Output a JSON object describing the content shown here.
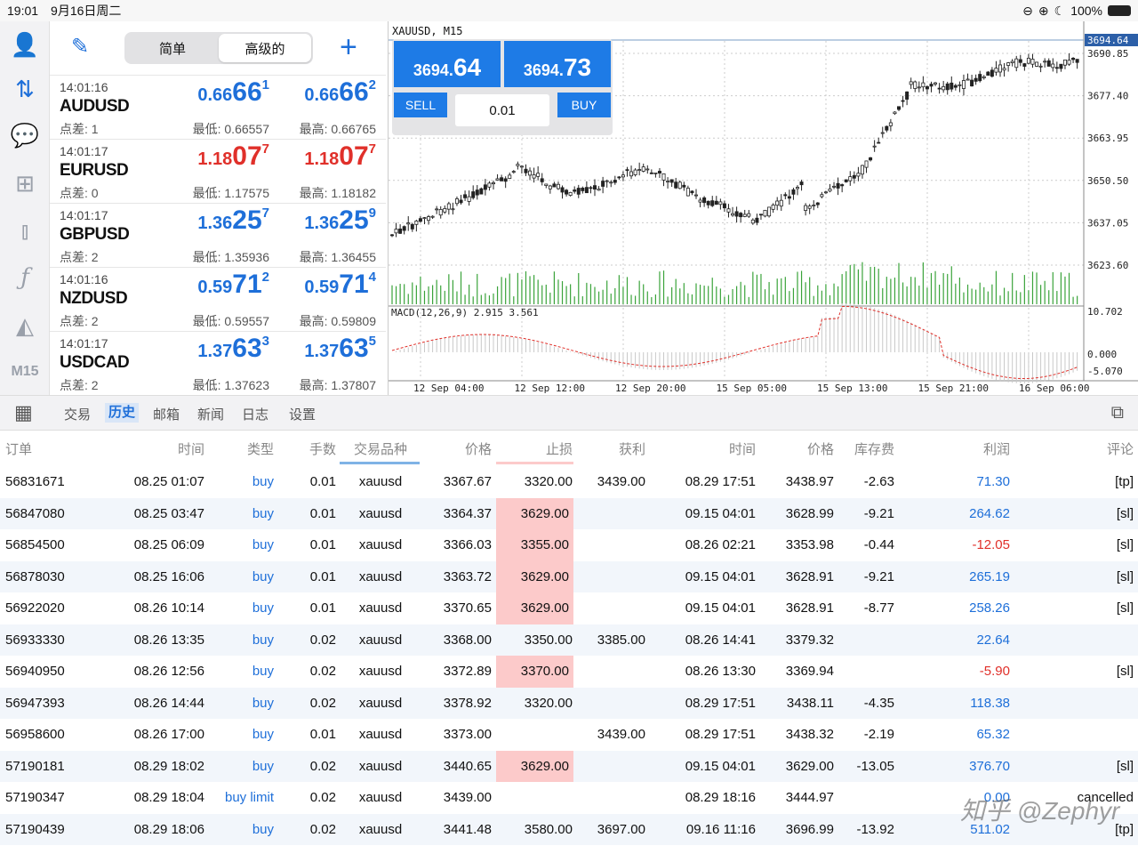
{
  "status": {
    "time": "19:01",
    "date": "9月16日周二",
    "battery": "100%"
  },
  "sidebar": {
    "timeframe": "M15"
  },
  "quotes_header": {
    "seg_simple": "简单",
    "seg_advanced": "高级的"
  },
  "quotes": [
    {
      "time": "14:01:16",
      "symbol": "AUDUSD",
      "spread": "点差: 1",
      "bid_a": "0.66",
      "bid_b": "66",
      "bid_c": "1",
      "ask_a": "0.66",
      "ask_b": "66",
      "ask_c": "2",
      "low": "最低: 0.66557",
      "high": "最高: 0.66765",
      "color": "#1e6fd9"
    },
    {
      "time": "14:01:17",
      "symbol": "EURUSD",
      "spread": "点差: 0",
      "bid_a": "1.18",
      "bid_b": "07",
      "bid_c": "7",
      "ask_a": "1.18",
      "ask_b": "07",
      "ask_c": "7",
      "low": "最低: 1.17575",
      "high": "最高: 1.18182",
      "color": "#e0302a"
    },
    {
      "time": "14:01:17",
      "symbol": "GBPUSD",
      "spread": "点差: 2",
      "bid_a": "1.36",
      "bid_b": "25",
      "bid_c": "7",
      "ask_a": "1.36",
      "ask_b": "25",
      "ask_c": "9",
      "low": "最低: 1.35936",
      "high": "最高: 1.36455",
      "color": "#1e6fd9"
    },
    {
      "time": "14:01:16",
      "symbol": "NZDUSD",
      "spread": "点差: 2",
      "bid_a": "0.59",
      "bid_b": "71",
      "bid_c": "2",
      "ask_a": "0.59",
      "ask_b": "71",
      "ask_c": "4",
      "low": "最低: 0.59557",
      "high": "最高: 0.59809",
      "color": "#1e6fd9"
    },
    {
      "time": "14:01:17",
      "symbol": "USDCAD",
      "spread": "点差: 2",
      "bid_a": "1.37",
      "bid_b": "63",
      "bid_c": "3",
      "ask_a": "1.37",
      "ask_b": "63",
      "ask_c": "5",
      "low": "最低: 1.37623",
      "high": "最高: 1.37807",
      "color": "#1e6fd9"
    }
  ],
  "chart": {
    "title": "XAUUSD, M15",
    "sell_a": "3694.",
    "sell_b": "64",
    "buy_a": "3694.",
    "buy_b": "73",
    "sell_label": "SELL",
    "buy_label": "BUY",
    "lot": "0.01",
    "price_tag": "3694.64",
    "y_ticks": [
      "3690.85",
      "3677.40",
      "3663.95",
      "3650.50",
      "3637.05",
      "3623.60"
    ],
    "macd_label": "MACD(12,26,9) 2.915 3.561",
    "macd_ticks": [
      "10.702",
      "0.000",
      "-5.070"
    ],
    "x_ticks": [
      "12 Sep 04:00",
      "12 Sep 12:00",
      "12 Sep 20:00",
      "15 Sep 05:00",
      "15 Sep 13:00",
      "15 Sep 21:00",
      "16 Sep 06:00"
    ]
  },
  "tabs": [
    "交易",
    "历史",
    "邮箱",
    "新闻",
    "日志",
    "设置"
  ],
  "columns": [
    "订单",
    "时间",
    "类型",
    "手数",
    "交易品种",
    "价格",
    "止损",
    "获利",
    "时间",
    "价格",
    "库存费",
    "利润",
    "评论"
  ],
  "rows": [
    [
      "56831671",
      "08.25 01:07",
      "buy",
      "0.01",
      "xauusd",
      "3367.67",
      "3320.00",
      "3439.00",
      "08.29 17:51",
      "3438.97",
      "-2.63",
      "71.30",
      "[tp]"
    ],
    [
      "56847080",
      "08.25 03:47",
      "buy",
      "0.01",
      "xauusd",
      "3364.37",
      "3629.00",
      "",
      "09.15 04:01",
      "3628.99",
      "-9.21",
      "264.62",
      "[sl]"
    ],
    [
      "56854500",
      "08.25 06:09",
      "buy",
      "0.01",
      "xauusd",
      "3366.03",
      "3355.00",
      "",
      "08.26 02:21",
      "3353.98",
      "-0.44",
      "-12.05",
      "[sl]"
    ],
    [
      "56878030",
      "08.25 16:06",
      "buy",
      "0.01",
      "xauusd",
      "3363.72",
      "3629.00",
      "",
      "09.15 04:01",
      "3628.91",
      "-9.21",
      "265.19",
      "[sl]"
    ],
    [
      "56922020",
      "08.26 10:14",
      "buy",
      "0.01",
      "xauusd",
      "3370.65",
      "3629.00",
      "",
      "09.15 04:01",
      "3628.91",
      "-8.77",
      "258.26",
      "[sl]"
    ],
    [
      "56933330",
      "08.26 13:35",
      "buy",
      "0.02",
      "xauusd",
      "3368.00",
      "3350.00",
      "3385.00",
      "08.26 14:41",
      "3379.32",
      "",
      "22.64",
      ""
    ],
    [
      "56940950",
      "08.26 12:56",
      "buy",
      "0.02",
      "xauusd",
      "3372.89",
      "3370.00",
      "",
      "08.26 13:30",
      "3369.94",
      "",
      "-5.90",
      "[sl]"
    ],
    [
      "56947393",
      "08.26 14:44",
      "buy",
      "0.02",
      "xauusd",
      "3378.92",
      "3320.00",
      "",
      "08.29 17:51",
      "3438.11",
      "-4.35",
      "118.38",
      ""
    ],
    [
      "56958600",
      "08.26 17:00",
      "buy",
      "0.01",
      "xauusd",
      "3373.00",
      "",
      "3439.00",
      "08.29 17:51",
      "3438.32",
      "-2.19",
      "65.32",
      ""
    ],
    [
      "57190181",
      "08.29 18:02",
      "buy",
      "0.02",
      "xauusd",
      "3440.65",
      "3629.00",
      "",
      "09.15 04:01",
      "3629.00",
      "-13.05",
      "376.70",
      "[sl]"
    ],
    [
      "57190347",
      "08.29 18:04",
      "buy limit",
      "0.02",
      "xauusd",
      "3439.00",
      "",
      "",
      "08.29 18:16",
      "3444.97",
      "",
      "0.00",
      "cancelled"
    ],
    [
      "57190439",
      "08.29 18:06",
      "buy",
      "0.02",
      "xauusd",
      "3441.48",
      "3580.00",
      "3697.00",
      "09.16 11:16",
      "3696.99",
      "-13.92",
      "511.02",
      "[tp]"
    ]
  ],
  "sl_highlight": [
    false,
    true,
    true,
    true,
    true,
    false,
    true,
    false,
    false,
    true,
    false,
    false
  ],
  "watermark": "知乎 @Zephyr"
}
